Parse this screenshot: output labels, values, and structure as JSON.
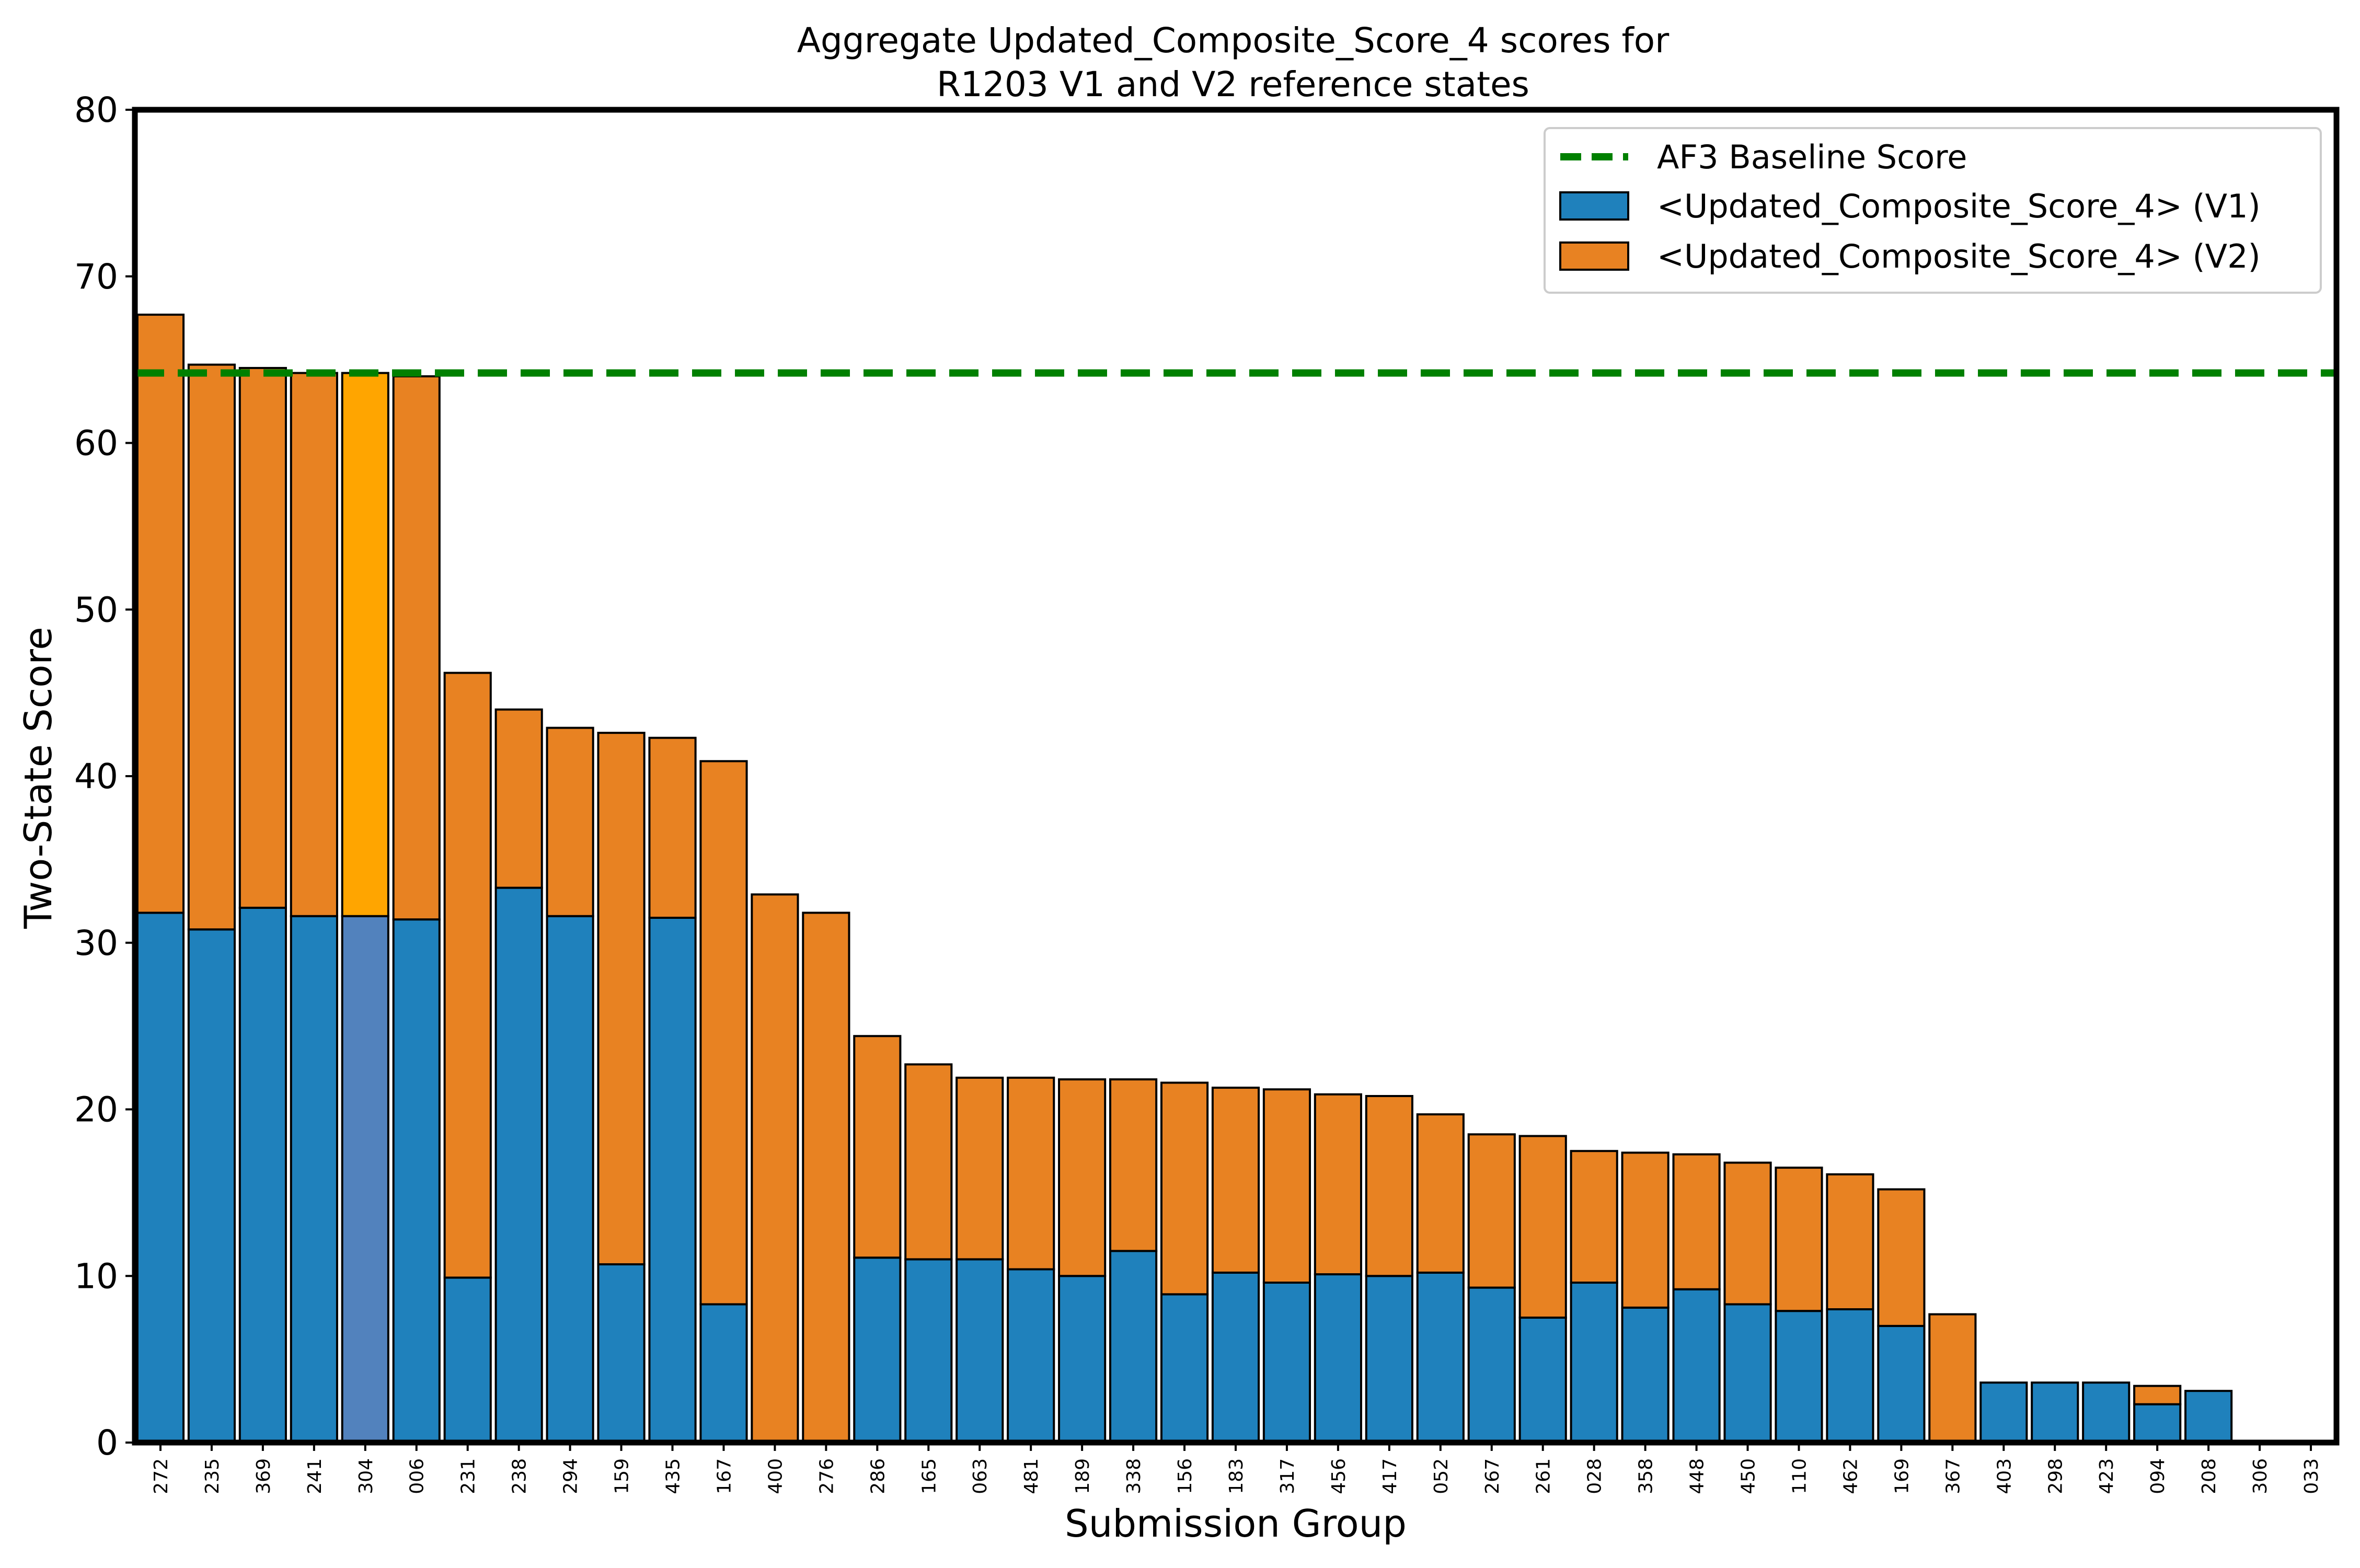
{
  "chart_data": {
    "type": "bar",
    "stacked": true,
    "title": "Aggregate Updated_Composite_Score_4 scores for",
    "subtitle": "R1203 V1 and V2 reference states",
    "xlabel": "Submission Group",
    "ylabel": "Two-State Score",
    "ylim": [
      0,
      80
    ],
    "yticks": [
      0,
      10,
      20,
      30,
      40,
      50,
      60,
      70,
      80
    ],
    "legend_position": "top-right",
    "categories": [
      "272",
      "235",
      "369",
      "241",
      "304",
      "006",
      "231",
      "238",
      "294",
      "159",
      "435",
      "167",
      "400",
      "276",
      "286",
      "165",
      "063",
      "481",
      "189",
      "338",
      "156",
      "183",
      "317",
      "456",
      "417",
      "052",
      "267",
      "261",
      "028",
      "358",
      "448",
      "450",
      "110",
      "462",
      "169",
      "367",
      "403",
      "298",
      "423",
      "094",
      "208",
      "306",
      "033"
    ],
    "highlight_category": "304",
    "series": [
      {
        "name": "<Updated_Composite_Score_4> (V1)",
        "color": "#1f81bc",
        "highlight_color": "#5282bd",
        "values": [
          31.8,
          30.8,
          32.1,
          31.6,
          31.6,
          31.4,
          9.9,
          33.3,
          31.6,
          10.7,
          31.5,
          8.3,
          0,
          0,
          11.1,
          11.0,
          11.0,
          10.4,
          10.0,
          11.5,
          8.9,
          10.2,
          9.6,
          10.1,
          10.0,
          10.2,
          9.3,
          7.5,
          9.6,
          8.1,
          9.2,
          8.3,
          7.9,
          8.0,
          7.0,
          0,
          3.6,
          3.6,
          3.6,
          2.3,
          3.1,
          0,
          0
        ]
      },
      {
        "name": "<Updated_Composite_Score_4> (V2)",
        "color": "#e88222",
        "highlight_color": "#ffa500",
        "values": [
          35.9,
          33.9,
          32.4,
          32.6,
          32.6,
          32.6,
          36.3,
          10.7,
          11.3,
          31.9,
          10.8,
          32.6,
          32.9,
          31.8,
          13.3,
          11.7,
          10.9,
          11.5,
          11.8,
          10.3,
          12.7,
          11.1,
          11.6,
          10.8,
          10.8,
          9.5,
          9.2,
          10.9,
          7.9,
          9.3,
          8.1,
          8.5,
          8.6,
          8.1,
          8.2,
          7.7,
          0,
          0,
          0,
          1.1,
          0,
          0,
          0
        ]
      }
    ],
    "baseline": {
      "name": "AF3 Baseline Score",
      "value": 64.2,
      "color": "#008000"
    }
  }
}
